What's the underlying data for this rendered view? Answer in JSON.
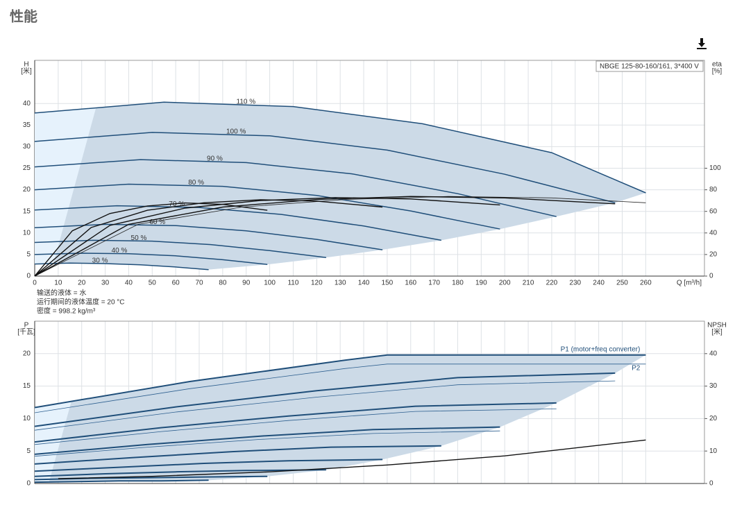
{
  "title": "性能",
  "chart_data": [
    {
      "type": "line",
      "y_label": "H",
      "y_unit": "[米]",
      "y2_label": "eta",
      "y2_unit": "[%]",
      "x_label": "Q [m³/h]",
      "legend": "NBGE 125-80-160/161, 3*400 V",
      "notes": [
        "输送的液体 = 水",
        "运行期间的液体温度 = 20 °C",
        "密度 = 998.2 kg/m³"
      ],
      "xlim": [
        0,
        285
      ],
      "xticks": [
        0,
        10,
        20,
        30,
        40,
        50,
        60,
        70,
        80,
        90,
        100,
        110,
        120,
        130,
        140,
        150,
        160,
        170,
        180,
        190,
        200,
        210,
        220,
        230,
        240,
        250,
        260
      ],
      "ylim": [
        0,
        50
      ],
      "yticks": [
        0,
        5,
        10,
        15,
        20,
        25,
        30,
        35,
        40
      ],
      "y2lim": [
        0,
        200
      ],
      "y2ticks": [
        0,
        20,
        40,
        60,
        80,
        100
      ],
      "grid": true,
      "area_color": "#ccdae7",
      "area_light_color": "#e6f2fc",
      "series": [
        {
          "name": "110 %",
          "color": "#1f4e79",
          "line_width": 1.5,
          "x": [
            0,
            55,
            110,
            165,
            220,
            260
          ],
          "values": [
            37.8,
            40.3,
            39.3,
            35.3,
            28.6,
            19.3
          ]
        },
        {
          "name": "100 %",
          "color": "#1f4e79",
          "line_width": 1.5,
          "x": [
            0,
            50,
            100,
            150,
            200,
            247
          ],
          "values": [
            31.2,
            33.3,
            32.5,
            29.2,
            23.6,
            17.0
          ]
        },
        {
          "name": "90 %",
          "color": "#1f4e79",
          "line_width": 1.5,
          "x": [
            0,
            45,
            90,
            135,
            180,
            222
          ],
          "values": [
            25.3,
            27.0,
            26.3,
            23.7,
            19.1,
            13.8
          ]
        },
        {
          "name": "80 %",
          "color": "#1f4e79",
          "line_width": 1.5,
          "x": [
            0,
            40,
            80,
            120,
            160,
            198
          ],
          "values": [
            20.0,
            21.3,
            20.8,
            18.7,
            15.1,
            10.9
          ]
        },
        {
          "name": "70 %",
          "color": "#1f4e79",
          "line_width": 1.5,
          "x": [
            0,
            35,
            70,
            105,
            140,
            173
          ],
          "values": [
            15.3,
            16.3,
            15.9,
            14.3,
            11.6,
            8.3
          ]
        },
        {
          "name": "60 %",
          "color": "#1f4e79",
          "line_width": 1.5,
          "x": [
            0,
            30,
            60,
            90,
            120,
            148
          ],
          "values": [
            11.2,
            12.0,
            11.7,
            10.5,
            8.5,
            6.1
          ]
        },
        {
          "name": "50 %",
          "color": "#1f4e79",
          "line_width": 1.5,
          "x": [
            0,
            25,
            50,
            75,
            100,
            124
          ],
          "values": [
            7.8,
            8.3,
            8.1,
            7.3,
            5.9,
            4.3
          ]
        },
        {
          "name": "40 %",
          "color": "#1f4e79",
          "line_width": 1.5,
          "x": [
            0,
            20,
            40,
            60,
            80,
            99
          ],
          "values": [
            5.0,
            5.3,
            5.2,
            4.7,
            3.8,
            2.7
          ]
        },
        {
          "name": "30 %",
          "color": "#1f4e79",
          "line_width": 1.5,
          "x": [
            0,
            15,
            30,
            45,
            60,
            74
          ],
          "values": [
            2.8,
            3.0,
            2.9,
            2.6,
            2.1,
            1.5
          ]
        },
        {
          "axis": "y2",
          "color": "#222",
          "line_width": 0.8,
          "x": [
            0,
            44,
            88,
            132,
            176,
            220,
            260
          ],
          "values": [
            0,
            48,
            64,
            71,
            73.8,
            72.5,
            68
          ]
        },
        {
          "axis": "y2",
          "color": "#111",
          "line_width": 1.4,
          "x": [
            0,
            40,
            80,
            120,
            160,
            200,
            247
          ],
          "values": [
            0,
            48,
            64,
            71,
            73.8,
            72.5,
            67
          ]
        },
        {
          "axis": "y2",
          "color": "#111",
          "line_width": 1.4,
          "x": [
            0,
            32,
            64,
            96,
            128,
            160,
            198
          ],
          "values": [
            0,
            47,
            63,
            70,
            72.8,
            71.5,
            66
          ]
        },
        {
          "axis": "y2",
          "color": "#111",
          "line_width": 1.4,
          "x": [
            0,
            24,
            48,
            72,
            96,
            120,
            148
          ],
          "values": [
            0,
            45,
            61,
            68,
            70.8,
            69.5,
            64
          ]
        },
        {
          "axis": "y2",
          "color": "#111",
          "line_width": 1.4,
          "x": [
            0,
            16,
            32,
            48,
            64,
            80,
            99
          ],
          "values": [
            0,
            42,
            58,
            65,
            67.8,
            66.5,
            61
          ]
        }
      ]
    },
    {
      "type": "line",
      "y_label": "P",
      "y_unit": "[千瓦]",
      "y2_label": "NPSH",
      "y2_unit": "[米]",
      "ylim": [
        0,
        25
      ],
      "yticks": [
        0,
        5,
        10,
        15,
        20
      ],
      "y2lim": [
        0,
        50
      ],
      "y2ticks": [
        0,
        10,
        20,
        30,
        40
      ],
      "grid": true,
      "area_color": "#ccdae7",
      "area_light_color": "#e6f2fc",
      "series": [
        {
          "name": "P1 (motor+freq converter)",
          "color": "#1f4e79",
          "line_width": 2,
          "x": [
            0,
            66,
            132,
            150,
            260
          ],
          "values": [
            11.7,
            15.7,
            19.0,
            19.8,
            19.8
          ]
        },
        {
          "color": "#1f4e79",
          "line_width": 2,
          "x": [
            0,
            60,
            120,
            180,
            247
          ],
          "values": [
            8.8,
            11.8,
            14.3,
            16.3,
            17.0
          ]
        },
        {
          "color": "#1f4e79",
          "line_width": 2,
          "x": [
            0,
            54,
            108,
            162,
            222
          ],
          "values": [
            6.4,
            8.6,
            10.4,
            11.9,
            12.4
          ]
        },
        {
          "color": "#1f4e79",
          "line_width": 2,
          "x": [
            0,
            48,
            96,
            144,
            198
          ],
          "values": [
            4.5,
            6.0,
            7.3,
            8.3,
            8.7
          ]
        },
        {
          "color": "#1f4e79",
          "line_width": 2,
          "x": [
            0,
            42,
            84,
            126,
            173
          ],
          "values": [
            3.0,
            4.0,
            4.9,
            5.6,
            5.8
          ]
        },
        {
          "color": "#1f4e79",
          "line_width": 2,
          "x": [
            0,
            36,
            72,
            108,
            148
          ],
          "values": [
            1.9,
            2.5,
            3.1,
            3.5,
            3.7
          ]
        },
        {
          "color": "#1f4e79",
          "line_width": 2,
          "x": [
            0,
            30,
            60,
            90,
            124
          ],
          "values": [
            1.1,
            1.5,
            1.8,
            2.0,
            2.1
          ]
        },
        {
          "color": "#1f4e79",
          "line_width": 2,
          "x": [
            0,
            24,
            48,
            72,
            99
          ],
          "values": [
            0.6,
            0.8,
            0.9,
            1.0,
            1.1
          ]
        },
        {
          "color": "#1f4e79",
          "line_width": 2,
          "x": [
            0,
            18,
            36,
            54,
            74
          ],
          "values": [
            0.2,
            0.3,
            0.4,
            0.4,
            0.5
          ]
        },
        {
          "name": "P2",
          "color": "#2d5f8f",
          "line_width": 0.8,
          "x": [
            0,
            66,
            132,
            150,
            260
          ],
          "values": [
            10.9,
            14.6,
            17.7,
            18.4,
            18.4
          ]
        },
        {
          "color": "#2d5f8f",
          "line_width": 0.8,
          "x": [
            0,
            60,
            120,
            180,
            247
          ],
          "values": [
            8.2,
            11.0,
            13.3,
            15.2,
            15.8
          ]
        },
        {
          "color": "#2d5f8f",
          "line_width": 0.8,
          "x": [
            0,
            54,
            108,
            162,
            222
          ],
          "values": [
            6.0,
            8.0,
            9.7,
            11.1,
            11.5
          ]
        },
        {
          "color": "#2d5f8f",
          "line_width": 0.8,
          "x": [
            0,
            48,
            96,
            144,
            198
          ],
          "values": [
            4.2,
            5.6,
            6.8,
            7.7,
            8.1
          ]
        },
        {
          "axis": "y2",
          "color": "#111",
          "line_width": 1.4,
          "x": [
            10,
            50,
            100,
            150,
            200,
            260
          ],
          "values": [
            1.5,
            2.2,
            3.6,
            5.7,
            8.5,
            13.4
          ]
        }
      ]
    }
  ]
}
